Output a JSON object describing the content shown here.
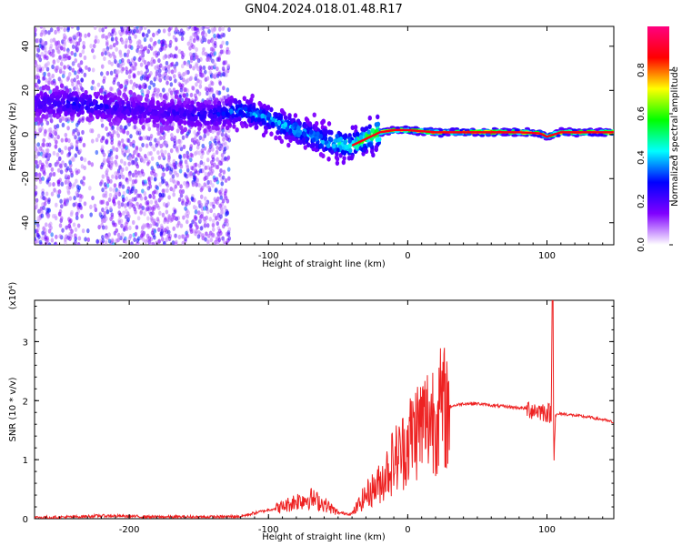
{
  "title": "GN04.2024.018.01.48.R17",
  "chart_data": [
    {
      "type": "heatmap",
      "xlabel": "Height of straight line (km)",
      "ylabel": "Frequency (Hz)",
      "xlim": [
        -268,
        148
      ],
      "ylim": [
        -50,
        49
      ],
      "x_ticks": [
        -200,
        -100,
        0,
        100
      ],
      "y_ticks": [
        -40,
        -20,
        0,
        20,
        40
      ],
      "colorbar": {
        "label": "Normalized spectral amplitude",
        "range": [
          0.0,
          1.0
        ],
        "ticks": [
          0.0,
          0.2,
          0.4,
          0.6,
          0.8
        ],
        "colors": [
          "#ffffff",
          "#8000ff",
          "#0000ff",
          "#00ffff",
          "#00ff00",
          "#ffff00",
          "#ff0000",
          "#ff0080"
        ]
      },
      "ridge": {
        "x": [
          -265,
          -240,
          -210,
          -180,
          -140,
          -120,
          -100,
          -80,
          -60,
          -50,
          -40,
          -30,
          -20,
          -10,
          0,
          20,
          40,
          60,
          80,
          95,
          100,
          110,
          148
        ],
        "y": [
          14,
          14,
          12,
          10,
          9,
          11,
          7,
          2,
          -3,
          -4,
          -5,
          -2,
          1,
          2,
          2,
          1,
          1,
          1,
          1,
          0.5,
          -1,
          1,
          1
        ],
        "intensity": [
          0.15,
          0.2,
          0.15,
          0.12,
          0.2,
          0.3,
          0.35,
          0.35,
          0.35,
          0.45,
          0.5,
          0.6,
          0.7,
          0.75,
          0.8,
          0.85,
          0.9,
          0.9,
          0.85,
          0.75,
          0.55,
          0.85,
          0.85
        ]
      },
      "grid": false
    },
    {
      "type": "line",
      "xlabel": "Height of straight line (km)",
      "ylabel": "SNR (10 * v/v)",
      "y_scale_label": "(x10⁴)",
      "xlim": [
        -268,
        148
      ],
      "ylim": [
        0,
        3.7
      ],
      "x_ticks": [
        -200,
        -100,
        0,
        100
      ],
      "y_ticks": [
        0,
        1,
        2,
        3
      ],
      "color": "#ee2222",
      "grid": false,
      "series": [
        {
          "x": [
            -268,
            -240,
            -220,
            -180,
            -140,
            -120,
            -100,
            -90,
            -80,
            -70,
            -60,
            -50,
            -40,
            -30,
            -20,
            -15,
            -10,
            -5,
            0,
            5,
            10,
            20,
            30,
            40,
            50,
            60,
            70,
            80,
            90,
            95,
            100,
            103,
            104,
            105,
            106,
            110,
            120,
            130,
            140,
            148
          ],
          "y": [
            0.02,
            0.03,
            0.05,
            0.03,
            0.03,
            0.04,
            0.15,
            0.2,
            0.3,
            0.35,
            0.25,
            0.1,
            0.08,
            0.4,
            0.6,
            0.8,
            1.0,
            1.1,
            1.3,
            1.5,
            1.6,
            1.8,
            1.9,
            1.95,
            1.95,
            1.92,
            1.9,
            1.88,
            1.85,
            1.83,
            1.8,
            1.78,
            3.7,
            1.0,
            1.75,
            1.78,
            1.75,
            1.72,
            1.68,
            1.63
          ]
        }
      ]
    }
  ]
}
